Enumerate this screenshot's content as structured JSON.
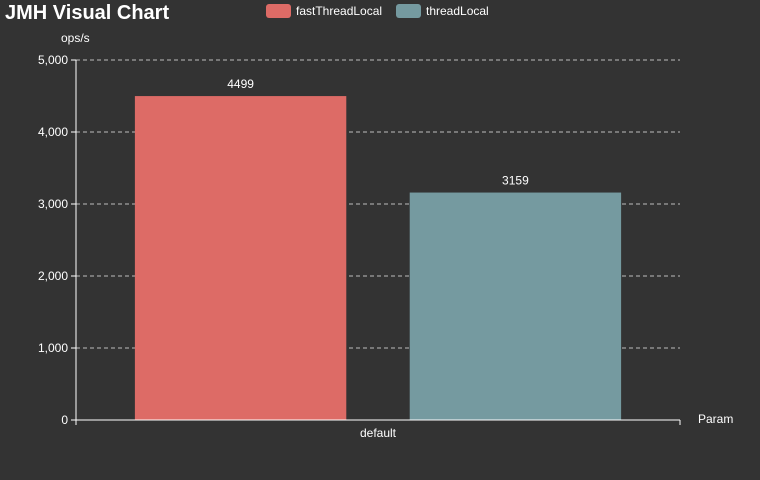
{
  "chart_data": {
    "type": "bar",
    "title": "JMH Visual Chart",
    "xlabel": "Param",
    "ylabel": "ops/s",
    "categories": [
      "default"
    ],
    "ylim": [
      0,
      5000
    ],
    "yticks": [
      0,
      1000,
      2000,
      3000,
      4000,
      5000
    ],
    "ytick_labels": [
      "0",
      "1,000",
      "2,000",
      "3,000",
      "4,000",
      "5,000"
    ],
    "grid": true,
    "legend_position": "top-center",
    "series": [
      {
        "name": "fastThreadLocal",
        "values": [
          4499
        ],
        "labels": [
          "4499"
        ],
        "color": "#dd6b66"
      },
      {
        "name": "threadLocal",
        "values": [
          3159
        ],
        "labels": [
          "3159"
        ],
        "color": "#759aa0"
      }
    ]
  }
}
